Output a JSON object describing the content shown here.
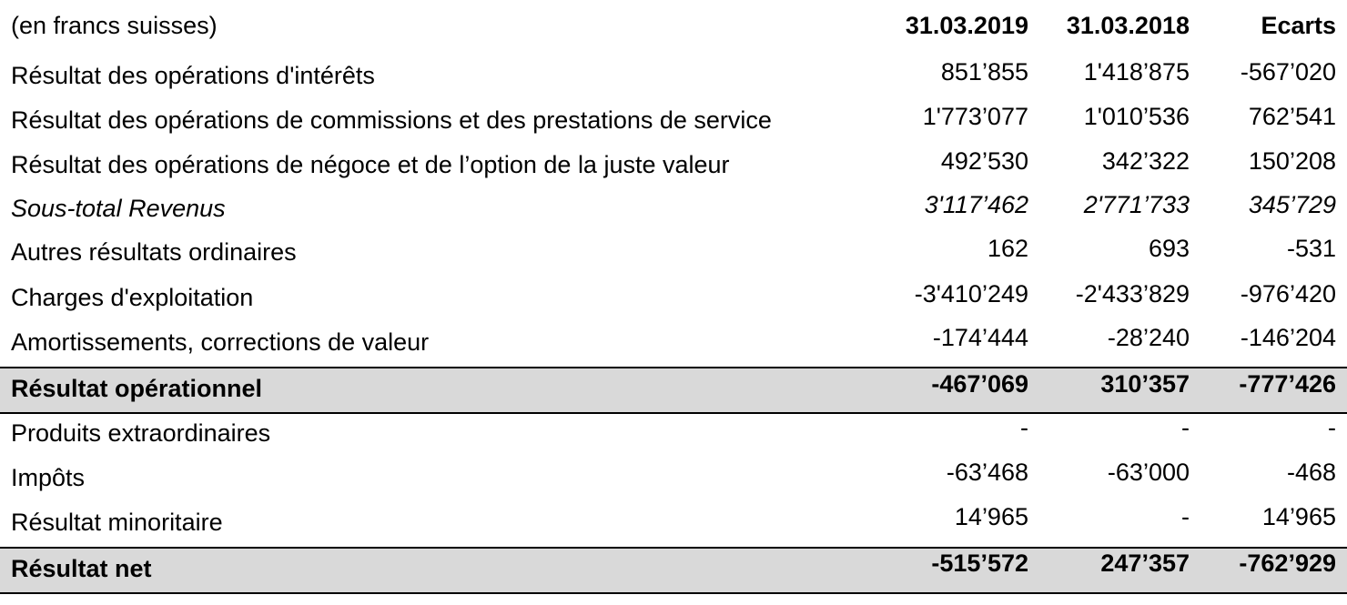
{
  "header": {
    "label": "(en francs suisses)",
    "col1": "31.03.2019",
    "col2": "31.03.2018",
    "col3": "Ecarts"
  },
  "rows": [
    {
      "label": "Résultat des opérations d'intérêts",
      "v1": "851’855",
      "v2": "1'418’875",
      "v3": "-567’020"
    },
    {
      "label": "Résultat des opérations de commissions et des prestations de service",
      "v1": "1'773’077",
      "v2": "1'010’536",
      "v3": "762’541"
    },
    {
      "label": "Résultat des opérations de négoce et de l’option de la juste valeur",
      "v1": "492’530",
      "v2": "342’322",
      "v3": "150’208"
    },
    {
      "label": "Sous-total Revenus",
      "v1": "3'117’462",
      "v2": "2'771’733",
      "v3": "345’729"
    },
    {
      "label": "Autres résultats ordinaires",
      "v1": "162",
      "v2": "693",
      "v3": "-531"
    },
    {
      "label": "Charges d'exploitation",
      "v1": "-3'410’249",
      "v2": "-2'433’829",
      "v3": "-976’420"
    },
    {
      "label": "Amortissements, corrections de valeur",
      "v1": "-174’444",
      "v2": "-28’240",
      "v3": "-146’204"
    },
    {
      "label": "Résultat opérationnel",
      "v1": "-467’069",
      "v2": "310’357",
      "v3": "-777’426"
    },
    {
      "label": "Produits extraordinaires",
      "v1": "-",
      "v2": "-",
      "v3": "-"
    },
    {
      "label": "Impôts",
      "v1": "-63’468",
      "v2": "-63’000",
      "v3": "-468"
    },
    {
      "label": "Résultat minoritaire",
      "v1": "14’965",
      "v2": "-",
      "v3": "14’965"
    },
    {
      "label": "Résultat net",
      "v1": "-515’572",
      "v2": "247’357",
      "v3": "-762’929"
    }
  ]
}
